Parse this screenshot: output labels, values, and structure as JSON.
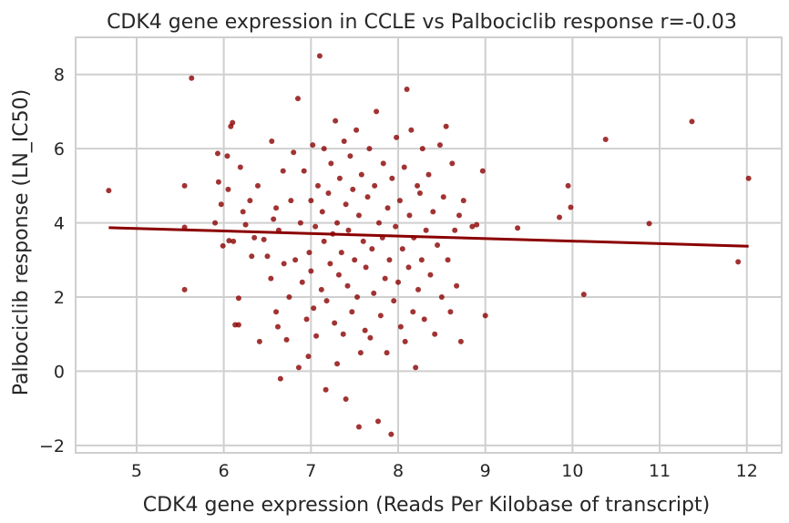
{
  "chart_data": {
    "type": "scatter",
    "title": "CDK4 gene expression in CCLE vs Palbociclib response r=-0.03",
    "xlabel": "CDK4 gene expression (Reads Per Kilobase of transcript)",
    "ylabel": "Palbociclib response (LN_IC50)",
    "xlim": [
      4.3,
      12.4
    ],
    "ylim": [
      -2.2,
      9.0
    ],
    "x_ticks": [
      5,
      6,
      7,
      8,
      9,
      10,
      11,
      12
    ],
    "y_ticks": [
      -2,
      0,
      2,
      4,
      6,
      8
    ],
    "x_tick_labels": [
      "5",
      "6",
      "7",
      "8",
      "9",
      "10",
      "11",
      "12"
    ],
    "y_tick_labels": [
      "−2",
      "0",
      "2",
      "4",
      "6",
      "8"
    ],
    "grid": true,
    "colors": {
      "points": "#8b0000",
      "fit_line": "#8b0000"
    },
    "fit_line": {
      "x": [
        4.68,
        12.02
      ],
      "y": [
        3.87,
        3.37
      ]
    },
    "series": [
      {
        "points": [
          [
            4.68,
            4.87
          ],
          [
            5.55,
            5.0
          ],
          [
            5.55,
            2.2
          ],
          [
            5.63,
            7.9
          ],
          [
            5.55,
            3.88
          ],
          [
            5.9,
            4.0
          ],
          [
            5.93,
            5.87
          ],
          [
            5.94,
            5.1
          ],
          [
            5.97,
            4.5
          ],
          [
            5.99,
            3.38
          ],
          [
            6.04,
            5.8
          ],
          [
            6.08,
            6.6
          ],
          [
            6.1,
            6.7
          ],
          [
            6.05,
            4.9
          ],
          [
            6.06,
            3.52
          ],
          [
            6.11,
            3.5
          ],
          [
            6.13,
            1.25
          ],
          [
            6.17,
            1.25
          ],
          [
            6.17,
            1.97
          ],
          [
            6.19,
            5.5
          ],
          [
            6.22,
            4.3
          ],
          [
            6.25,
            3.95
          ],
          [
            6.3,
            4.6
          ],
          [
            6.32,
            3.1
          ],
          [
            6.35,
            3.6
          ],
          [
            6.39,
            5.0
          ],
          [
            6.41,
            0.8
          ],
          [
            6.46,
            3.55
          ],
          [
            6.5,
            3.1
          ],
          [
            6.54,
            2.5
          ],
          [
            6.55,
            6.2
          ],
          [
            6.57,
            4.1
          ],
          [
            6.6,
            1.6
          ],
          [
            6.6,
            4.4
          ],
          [
            6.62,
            1.2
          ],
          [
            6.63,
            3.8
          ],
          [
            6.65,
            -0.2
          ],
          [
            6.68,
            5.4
          ],
          [
            6.69,
            2.9
          ],
          [
            6.72,
            0.85
          ],
          [
            6.75,
            2.0
          ],
          [
            6.77,
            4.6
          ],
          [
            6.8,
            5.9
          ],
          [
            6.82,
            3.0
          ],
          [
            6.85,
            7.35
          ],
          [
            6.86,
            0.1
          ],
          [
            6.88,
            4.0
          ],
          [
            6.9,
            2.4
          ],
          [
            6.92,
            5.4
          ],
          [
            6.95,
            1.4
          ],
          [
            6.97,
            0.4
          ],
          [
            6.98,
            3.2
          ],
          [
            7.0,
            4.6
          ],
          [
            7.0,
            2.7
          ],
          [
            7.02,
            6.1
          ],
          [
            7.03,
            1.7
          ],
          [
            7.05,
            3.9
          ],
          [
            7.06,
            0.95
          ],
          [
            7.08,
            5.0
          ],
          [
            7.1,
            8.5
          ],
          [
            7.12,
            2.2
          ],
          [
            7.13,
            4.3
          ],
          [
            7.15,
            3.5
          ],
          [
            7.15,
            6.0
          ],
          [
            7.17,
            -0.5
          ],
          [
            7.18,
            1.9
          ],
          [
            7.2,
            4.8
          ],
          [
            7.22,
            2.9
          ],
          [
            7.23,
            5.6
          ],
          [
            7.25,
            3.7
          ],
          [
            7.27,
            1.3
          ],
          [
            7.28,
            6.75
          ],
          [
            7.3,
            0.2
          ],
          [
            7.3,
            4.0
          ],
          [
            7.32,
            2.6
          ],
          [
            7.33,
            5.2
          ],
          [
            7.35,
            3.2
          ],
          [
            7.37,
            1.0
          ],
          [
            7.38,
            6.2
          ],
          [
            7.4,
            4.5
          ],
          [
            7.4,
            -0.75
          ],
          [
            7.42,
            2.3
          ],
          [
            7.43,
            3.8
          ],
          [
            7.45,
            5.8
          ],
          [
            7.47,
            1.6
          ],
          [
            7.48,
            4.9
          ],
          [
            7.5,
            3.0
          ],
          [
            7.52,
            6.5
          ],
          [
            7.53,
            2.0
          ],
          [
            7.55,
            -1.5
          ],
          [
            7.55,
            4.2
          ],
          [
            7.57,
            0.5
          ],
          [
            7.58,
            5.3
          ],
          [
            7.6,
            3.5
          ],
          [
            7.62,
            1.1
          ],
          [
            7.63,
            2.8
          ],
          [
            7.65,
            4.7
          ],
          [
            7.67,
            6.0
          ],
          [
            7.68,
            0.9
          ],
          [
            7.7,
            3.3
          ],
          [
            7.72,
            2.1
          ],
          [
            7.73,
            5.0
          ],
          [
            7.75,
            7.0
          ],
          [
            7.77,
            -1.35
          ],
          [
            7.78,
            4.0
          ],
          [
            7.8,
            1.5
          ],
          [
            7.82,
            3.6
          ],
          [
            7.83,
            5.6
          ],
          [
            7.85,
            2.5
          ],
          [
            7.87,
            0.5
          ],
          [
            7.88,
            4.4
          ],
          [
            7.9,
            3.0
          ],
          [
            7.92,
            -1.7
          ],
          [
            7.93,
            5.2
          ],
          [
            7.95,
            1.9
          ],
          [
            7.97,
            3.9
          ],
          [
            7.98,
            6.3
          ],
          [
            8.0,
            2.4
          ],
          [
            8.02,
            4.6
          ],
          [
            8.03,
            1.2
          ],
          [
            8.05,
            3.3
          ],
          [
            8.07,
            5.5
          ],
          [
            8.08,
            0.8
          ],
          [
            8.1,
            7.6
          ],
          [
            8.12,
            2.8
          ],
          [
            8.13,
            4.2
          ],
          [
            8.15,
            6.5
          ],
          [
            8.17,
            1.6
          ],
          [
            8.18,
            3.6
          ],
          [
            8.2,
            0.1
          ],
          [
            8.22,
            5.0
          ],
          [
            8.23,
            2.2
          ],
          [
            8.25,
            4.8
          ],
          [
            8.27,
            3.0
          ],
          [
            8.28,
            6.0
          ],
          [
            8.3,
            1.4
          ],
          [
            8.32,
            3.8
          ],
          [
            8.35,
            5.3
          ],
          [
            8.37,
            2.6
          ],
          [
            8.4,
            4.3
          ],
          [
            8.42,
            1.0
          ],
          [
            8.45,
            3.4
          ],
          [
            8.48,
            6.1
          ],
          [
            8.5,
            2.0
          ],
          [
            8.52,
            4.7
          ],
          [
            8.55,
            6.6
          ],
          [
            8.57,
            3.0
          ],
          [
            8.6,
            1.6
          ],
          [
            8.62,
            5.6
          ],
          [
            8.65,
            3.8
          ],
          [
            8.67,
            2.3
          ],
          [
            8.7,
            4.2
          ],
          [
            8.72,
            0.8
          ],
          [
            8.75,
            4.6
          ],
          [
            8.85,
            3.9
          ],
          [
            8.9,
            3.95
          ],
          [
            8.97,
            5.4
          ],
          [
            9.0,
            1.5
          ],
          [
            9.37,
            3.86
          ],
          [
            9.85,
            4.15
          ],
          [
            9.95,
            5.0
          ],
          [
            9.98,
            4.42
          ],
          [
            10.13,
            2.07
          ],
          [
            10.38,
            6.25
          ],
          [
            10.88,
            3.98
          ],
          [
            11.37,
            6.73
          ],
          [
            11.9,
            2.95
          ],
          [
            12.02,
            5.2
          ]
        ]
      }
    ]
  }
}
